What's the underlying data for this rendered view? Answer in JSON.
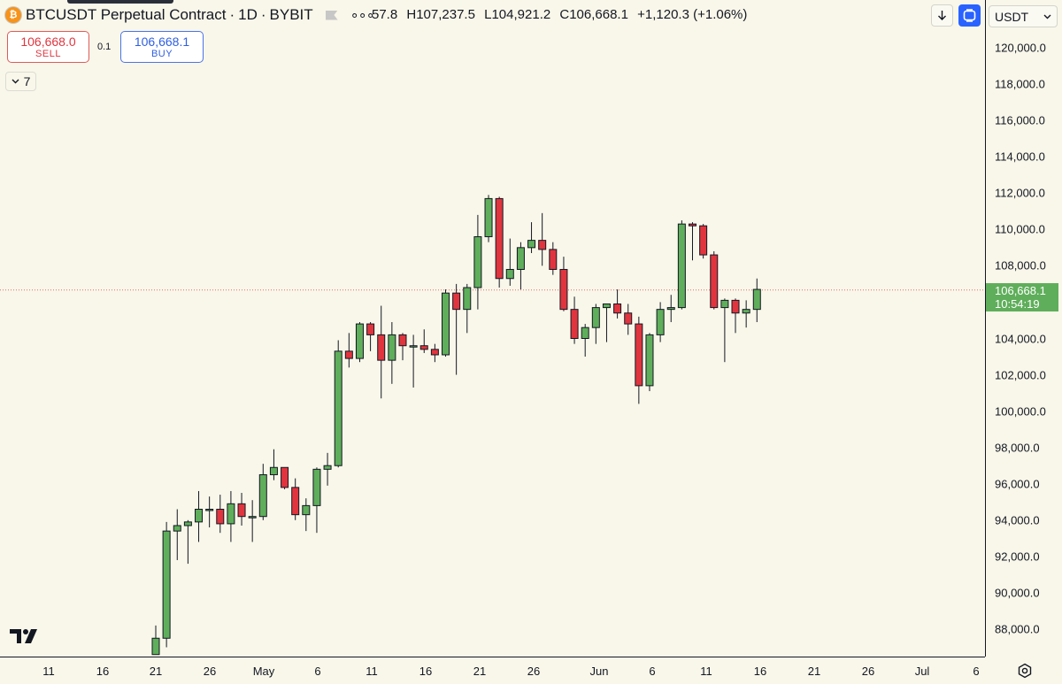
{
  "header": {
    "symbol_title": "BTCUSDT Perpetual Contract",
    "separator": "·",
    "interval": "1D",
    "exchange": "BYBIT",
    "more_glyph": "∘∘∘",
    "coin_glyph": "₿"
  },
  "ohlc": {
    "open": "57.8",
    "high": "H107,237.5",
    "low": "L104,921.2",
    "close": "C106,668.1",
    "change": "+1,120.3 (+1.06%)"
  },
  "trade": {
    "sell_price": "106,668.0",
    "sell_label": "SELL",
    "qty": "0.1",
    "buy_price": "106,668.1",
    "buy_label": "BUY"
  },
  "indicators": {
    "count": "7"
  },
  "currency": {
    "value": "USDT"
  },
  "price_axis": {
    "ticks": [
      "120,000.0",
      "118,000.0",
      "116,000.0",
      "114,000.0",
      "112,000.0",
      "110,000.0",
      "108,000.0",
      "104,000.0",
      "102,000.0",
      "100,000.0",
      "98,000.0",
      "96,000.0",
      "94,000.0",
      "92,000.0",
      "90,000.0",
      "88,000.0"
    ],
    "last_price": "106,668.1",
    "countdown": "10:54:19"
  },
  "time_axis": {
    "ticks": [
      "11",
      "16",
      "21",
      "26",
      "May",
      "6",
      "11",
      "16",
      "21",
      "26",
      "Jun",
      "6",
      "11",
      "16",
      "21",
      "26",
      "Jul",
      "6"
    ]
  },
  "colors": {
    "background": "#f9f7ea",
    "up": "#5fae5b",
    "down": "#e0353f",
    "accent": "#2962ff"
  },
  "chart_data": {
    "type": "candlestick",
    "symbol": "BTCUSDT",
    "interval": "1D",
    "y_range": [
      86600,
      122000
    ],
    "last_price": 106668.1,
    "candles": [
      {
        "date": "2025-04-21",
        "o": 86600,
        "h": 88200,
        "l": 86600,
        "c": 87500
      },
      {
        "date": "2025-04-22",
        "o": 87500,
        "h": 93900,
        "l": 87000,
        "c": 93400
      },
      {
        "date": "2025-04-23",
        "o": 93400,
        "h": 94600,
        "l": 91800,
        "c": 93700
      },
      {
        "date": "2025-04-24",
        "o": 93700,
        "h": 94000,
        "l": 91600,
        "c": 93900
      },
      {
        "date": "2025-04-25",
        "o": 93900,
        "h": 95600,
        "l": 92800,
        "c": 94600
      },
      {
        "date": "2025-04-26",
        "o": 94600,
        "h": 95300,
        "l": 93600,
        "c": 94600
      },
      {
        "date": "2025-04-27",
        "o": 94600,
        "h": 95400,
        "l": 93300,
        "c": 93800
      },
      {
        "date": "2025-04-28",
        "o": 93800,
        "h": 95600,
        "l": 92800,
        "c": 94900
      },
      {
        "date": "2025-04-29",
        "o": 94900,
        "h": 95500,
        "l": 93700,
        "c": 94200
      },
      {
        "date": "2025-04-30",
        "o": 94200,
        "h": 95100,
        "l": 92800,
        "c": 94200
      },
      {
        "date": "2025-05-01",
        "o": 94200,
        "h": 97100,
        "l": 94000,
        "c": 96500
      },
      {
        "date": "2025-05-02",
        "o": 96500,
        "h": 97900,
        "l": 96200,
        "c": 96900
      },
      {
        "date": "2025-05-03",
        "o": 96900,
        "h": 96900,
        "l": 95700,
        "c": 95800
      },
      {
        "date": "2025-05-04",
        "o": 95800,
        "h": 96300,
        "l": 94000,
        "c": 94300
      },
      {
        "date": "2025-05-05",
        "o": 94300,
        "h": 95200,
        "l": 93400,
        "c": 94800
      },
      {
        "date": "2025-05-06",
        "o": 94800,
        "h": 96900,
        "l": 93300,
        "c": 96800
      },
      {
        "date": "2025-05-07",
        "o": 96800,
        "h": 97700,
        "l": 95900,
        "c": 97000
      },
      {
        "date": "2025-05-08",
        "o": 97000,
        "h": 103900,
        "l": 96900,
        "c": 103300
      },
      {
        "date": "2025-05-09",
        "o": 103300,
        "h": 104300,
        "l": 102400,
        "c": 102900
      },
      {
        "date": "2025-05-10",
        "o": 102900,
        "h": 104900,
        "l": 102700,
        "c": 104800
      },
      {
        "date": "2025-05-11",
        "o": 104800,
        "h": 104900,
        "l": 103300,
        "c": 104200
      },
      {
        "date": "2025-05-12",
        "o": 104200,
        "h": 105800,
        "l": 100700,
        "c": 102800
      },
      {
        "date": "2025-05-13",
        "o": 102800,
        "h": 104900,
        "l": 101500,
        "c": 104200
      },
      {
        "date": "2025-05-14",
        "o": 104200,
        "h": 104300,
        "l": 102800,
        "c": 103600
      },
      {
        "date": "2025-05-15",
        "o": 103600,
        "h": 104200,
        "l": 101300,
        "c": 103600
      },
      {
        "date": "2025-05-16",
        "o": 103600,
        "h": 104500,
        "l": 103200,
        "c": 103400
      },
      {
        "date": "2025-05-17",
        "o": 103400,
        "h": 103700,
        "l": 102700,
        "c": 103100
      },
      {
        "date": "2025-05-18",
        "o": 103100,
        "h": 106700,
        "l": 103000,
        "c": 106500
      },
      {
        "date": "2025-05-19",
        "o": 106500,
        "h": 107000,
        "l": 102000,
        "c": 105600
      },
      {
        "date": "2025-05-20",
        "o": 105600,
        "h": 107000,
        "l": 104300,
        "c": 106800
      },
      {
        "date": "2025-05-21",
        "o": 106800,
        "h": 110800,
        "l": 105600,
        "c": 109600
      },
      {
        "date": "2025-05-22",
        "o": 109600,
        "h": 111900,
        "l": 109300,
        "c": 111700
      },
      {
        "date": "2025-05-23",
        "o": 111700,
        "h": 111800,
        "l": 106800,
        "c": 107300
      },
      {
        "date": "2025-05-24",
        "o": 107300,
        "h": 109500,
        "l": 106900,
        "c": 107800
      },
      {
        "date": "2025-05-25",
        "o": 107800,
        "h": 109300,
        "l": 106700,
        "c": 109000
      },
      {
        "date": "2025-05-26",
        "o": 109000,
        "h": 110400,
        "l": 108700,
        "c": 109400
      },
      {
        "date": "2025-05-27",
        "o": 109400,
        "h": 110900,
        "l": 108000,
        "c": 108900
      },
      {
        "date": "2025-05-28",
        "o": 108900,
        "h": 109300,
        "l": 107500,
        "c": 107800
      },
      {
        "date": "2025-05-29",
        "o": 107800,
        "h": 108500,
        "l": 105500,
        "c": 105600
      },
      {
        "date": "2025-05-30",
        "o": 105600,
        "h": 106300,
        "l": 103700,
        "c": 104000
      },
      {
        "date": "2025-05-31",
        "o": 104000,
        "h": 104800,
        "l": 103000,
        "c": 104600
      },
      {
        "date": "2025-06-01",
        "o": 104600,
        "h": 105900,
        "l": 103700,
        "c": 105700
      },
      {
        "date": "2025-06-02",
        "o": 105700,
        "h": 105900,
        "l": 103800,
        "c": 105900
      },
      {
        "date": "2025-06-03",
        "o": 105900,
        "h": 106700,
        "l": 105100,
        "c": 105400
      },
      {
        "date": "2025-06-04",
        "o": 105400,
        "h": 105900,
        "l": 104200,
        "c": 104800
      },
      {
        "date": "2025-06-05",
        "o": 104800,
        "h": 105200,
        "l": 100400,
        "c": 101400
      },
      {
        "date": "2025-06-06",
        "o": 101400,
        "h": 104300,
        "l": 101100,
        "c": 104200
      },
      {
        "date": "2025-06-07",
        "o": 104200,
        "h": 106000,
        "l": 103800,
        "c": 105600
      },
      {
        "date": "2025-06-08",
        "o": 105600,
        "h": 106400,
        "l": 104900,
        "c": 105700
      },
      {
        "date": "2025-06-09",
        "o": 105700,
        "h": 110500,
        "l": 105600,
        "c": 110300
      },
      {
        "date": "2025-06-10",
        "o": 110300,
        "h": 110400,
        "l": 108300,
        "c": 110200
      },
      {
        "date": "2025-06-11",
        "o": 110200,
        "h": 110300,
        "l": 108400,
        "c": 108600
      },
      {
        "date": "2025-06-12",
        "o": 108600,
        "h": 108800,
        "l": 105600,
        "c": 105700
      },
      {
        "date": "2025-06-13",
        "o": 105700,
        "h": 106200,
        "l": 102700,
        "c": 106100
      },
      {
        "date": "2025-06-14",
        "o": 106100,
        "h": 106200,
        "l": 104300,
        "c": 105400
      },
      {
        "date": "2025-06-15",
        "o": 105400,
        "h": 106100,
        "l": 104600,
        "c": 105600
      },
      {
        "date": "2025-06-16",
        "o": 105600,
        "h": 107300,
        "l": 104900,
        "c": 106700
      }
    ]
  }
}
